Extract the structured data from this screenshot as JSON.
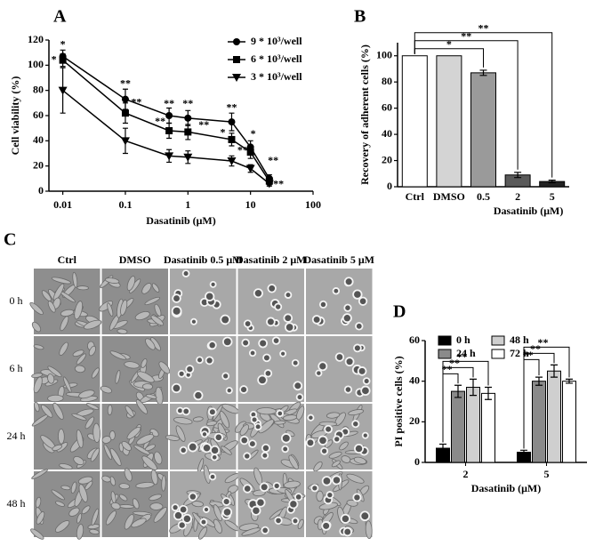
{
  "chart_data": [
    {
      "label": "A",
      "type": "line",
      "log_x": true,
      "x": [
        0.01,
        0.1,
        0.5,
        1,
        5,
        10,
        20
      ],
      "series": [
        {
          "name": "9 * 10³/well",
          "color": "#000000",
          "marker": "circle",
          "values": [
            107,
            73,
            60,
            58,
            55,
            35,
            10
          ],
          "errors": [
            5,
            8,
            6,
            6,
            7,
            5,
            3
          ]
        },
        {
          "name": "6 * 10³/well",
          "color": "#000000",
          "marker": "square",
          "values": [
            104,
            62,
            48,
            47,
            41,
            31,
            8
          ],
          "errors": [
            5,
            8,
            6,
            6,
            5,
            5,
            3
          ]
        },
        {
          "name": "3 * 10³/well",
          "color": "#000000",
          "marker": "triangle-down",
          "values": [
            80,
            40,
            28,
            27,
            24,
            18,
            6
          ],
          "errors": [
            18,
            10,
            5,
            5,
            4,
            3,
            2
          ]
        }
      ],
      "xlim": [
        0.006,
        100
      ],
      "xticks": [
        0.01,
        0.1,
        1,
        10,
        100
      ],
      "ylim": [
        0,
        120
      ],
      "yticks": [
        0,
        20,
        40,
        60,
        80,
        100,
        120
      ],
      "xlabel": "Dasatinib (μM)",
      "ylabel": "Cell viability (%)",
      "annotations": [
        {
          "text": "*",
          "x": 0.01,
          "y": 116
        },
        {
          "text": "*",
          "x": 0.0072,
          "y": 104
        },
        {
          "text": "**",
          "x": 0.1,
          "y": 85
        },
        {
          "text": "**",
          "x": 0.15,
          "y": 70
        },
        {
          "text": "**",
          "x": 0.5,
          "y": 69
        },
        {
          "text": "**",
          "x": 1,
          "y": 69
        },
        {
          "text": "**",
          "x": 0.36,
          "y": 55
        },
        {
          "text": "**",
          "x": 1.8,
          "y": 52
        },
        {
          "text": "**",
          "x": 5,
          "y": 66
        },
        {
          "text": "*",
          "x": 3.6,
          "y": 46
        },
        {
          "text": "*",
          "x": 11,
          "y": 45
        },
        {
          "text": "**",
          "x": 7.5,
          "y": 32
        },
        {
          "text": "**",
          "x": 23,
          "y": 24
        },
        {
          "text": "**",
          "x": 28,
          "y": 5
        }
      ]
    },
    {
      "label": "B",
      "type": "bar",
      "categories": [
        "Ctrl",
        "DMSO",
        "0.5",
        "2",
        "5"
      ],
      "values": [
        100,
        100,
        87,
        9,
        4
      ],
      "errors": [
        0,
        0,
        2,
        2,
        1
      ],
      "colors": [
        "#ffffff",
        "#d4d4d4",
        "#9a9a9a",
        "#5a5a5a",
        "#222222"
      ],
      "ylim": [
        0,
        110
      ],
      "yticks": [
        0,
        20,
        40,
        60,
        80,
        100
      ],
      "xlabel": "Dasatinib (μM)",
      "ylabel": "Recovery of adherent cells (%)",
      "brackets": [
        {
          "from": 0,
          "to": 2,
          "text": "*"
        },
        {
          "from": 0,
          "to": 3,
          "text": "**"
        },
        {
          "from": 0,
          "to": 4,
          "text": "**"
        }
      ]
    },
    {
      "label": "D",
      "type": "grouped-bar",
      "categories": [
        "2",
        "5"
      ],
      "series": [
        {
          "name": "0 h",
          "color": "#000000",
          "values": [
            7,
            5
          ],
          "errors": [
            2,
            1
          ]
        },
        {
          "name": "24 h",
          "color": "#8a8a8a",
          "values": [
            35,
            40
          ],
          "errors": [
            3,
            2
          ]
        },
        {
          "name": "48 h",
          "color": "#cfcfcf",
          "values": [
            37,
            45
          ],
          "errors": [
            4,
            3
          ]
        },
        {
          "name": "72 h",
          "color": "#ffffff",
          "values": [
            34,
            40
          ],
          "errors": [
            3,
            1
          ]
        }
      ],
      "ylim": [
        0,
        60
      ],
      "yticks": [
        0,
        20,
        40,
        60
      ],
      "xlabel": "Dasatinib (μM)",
      "ylabel": "PI positive cells (%)",
      "brackets": [
        {
          "category": 0,
          "from": 0,
          "to": 1,
          "text": "**"
        },
        {
          "category": 0,
          "from": 0,
          "to": 2,
          "text": "**"
        },
        {
          "category": 0,
          "from": 0,
          "to": 3,
          "text": "**"
        },
        {
          "category": 1,
          "from": 0,
          "to": 1,
          "text": "**"
        },
        {
          "category": 1,
          "from": 0,
          "to": 2,
          "text": "**"
        },
        {
          "category": 1,
          "from": 0,
          "to": 3,
          "text": "**"
        }
      ]
    }
  ],
  "image_grid": {
    "label": "C",
    "columns": [
      "Ctrl",
      "DMSO",
      "Dasatinib 0.5 μM",
      "Dasatinib 2 μM",
      "Dasatinib 5 μM"
    ],
    "rows": [
      "0 h",
      "6 h",
      "24 h",
      "48 h"
    ]
  }
}
